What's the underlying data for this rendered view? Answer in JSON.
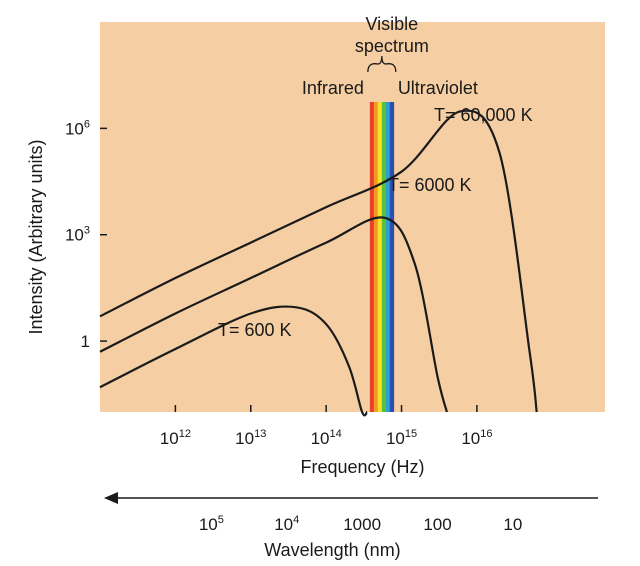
{
  "chart_data": {
    "type": "line",
    "xlabel": "Frequency (Hz)",
    "ylabel": "Intensity (Arbitrary units)",
    "x_scale": "log",
    "y_scale": "log",
    "x_ticks": [
      {
        "base": "10",
        "exp": "12",
        "value": 1000000000000.0
      },
      {
        "base": "10",
        "exp": "13",
        "value": 10000000000000.0
      },
      {
        "base": "10",
        "exp": "14",
        "value": 100000000000000.0
      },
      {
        "base": "10",
        "exp": "15",
        "value": 1000000000000000.0
      },
      {
        "base": "10",
        "exp": "16",
        "value": 1e+16
      }
    ],
    "y_ticks": [
      {
        "base": "1",
        "exp": "",
        "value": 1
      },
      {
        "base": "10",
        "exp": "3",
        "value": 1000
      },
      {
        "base": "10",
        "exp": "6",
        "value": 1000000
      }
    ],
    "xlim": [
      100000000000.0,
      5e+17
    ],
    "ylim": [
      0.01,
      1000000000.0
    ],
    "grid": false,
    "background": "#f5cfa3",
    "series": [
      {
        "name": "T= 600 K",
        "x": [
          100000000000.0,
          1000000000000.0,
          10000000000000.0,
          40000000000000.0,
          100000000000000.0,
          200000000000000.0,
          300000000000000.0,
          350000000000000.0
        ],
        "y": [
          0.05,
          0.6,
          6,
          9,
          3,
          0.2,
          0.01,
          0.001
        ]
      },
      {
        "name": "T= 6000 K",
        "x": [
          100000000000.0,
          1000000000000.0,
          10000000000000.0,
          100000000000000.0,
          600000000000000.0,
          1500000000000000.0,
          3000000000000000.0,
          4000000000000000.0
        ],
        "y": [
          0.5,
          6,
          60,
          600,
          3000,
          150,
          0.1,
          0.001
        ]
      },
      {
        "name": "T= 60,000 K",
        "x": [
          100000000000.0,
          1000000000000.0,
          10000000000000.0,
          100000000000000.0,
          1000000000000000.0,
          6000000000000000.0,
          2e+16,
          5e+16,
          6.2e+16
        ],
        "y": [
          5,
          60,
          600,
          6000,
          60000,
          3000000,
          200000,
          0.5,
          0.001
        ]
      }
    ],
    "annotations": {
      "visible_line1": "Visible",
      "visible_line2": "spectrum",
      "infrared": "Infrared",
      "ultraviolet": "Ultraviolet"
    },
    "visible_band": {
      "x_min": 380000000000000.0,
      "x_max": 790000000000000.0
    },
    "band_colors": [
      "#e8402a",
      "#f49a22",
      "#f5e12a",
      "#5cbf3a",
      "#2a9fd0",
      "#2a4fb0"
    ],
    "wavelength_axis": {
      "label": "Wavelength (nm)",
      "ticks": [
        {
          "base": "10",
          "exp": "5",
          "value": 100000
        },
        {
          "base": "10",
          "exp": "4",
          "value": 10000
        },
        {
          "base": "1000",
          "exp": "",
          "value": 1000
        },
        {
          "base": "100",
          "exp": "",
          "value": 100
        },
        {
          "base": "10",
          "exp": "",
          "value": 10
        }
      ]
    }
  }
}
